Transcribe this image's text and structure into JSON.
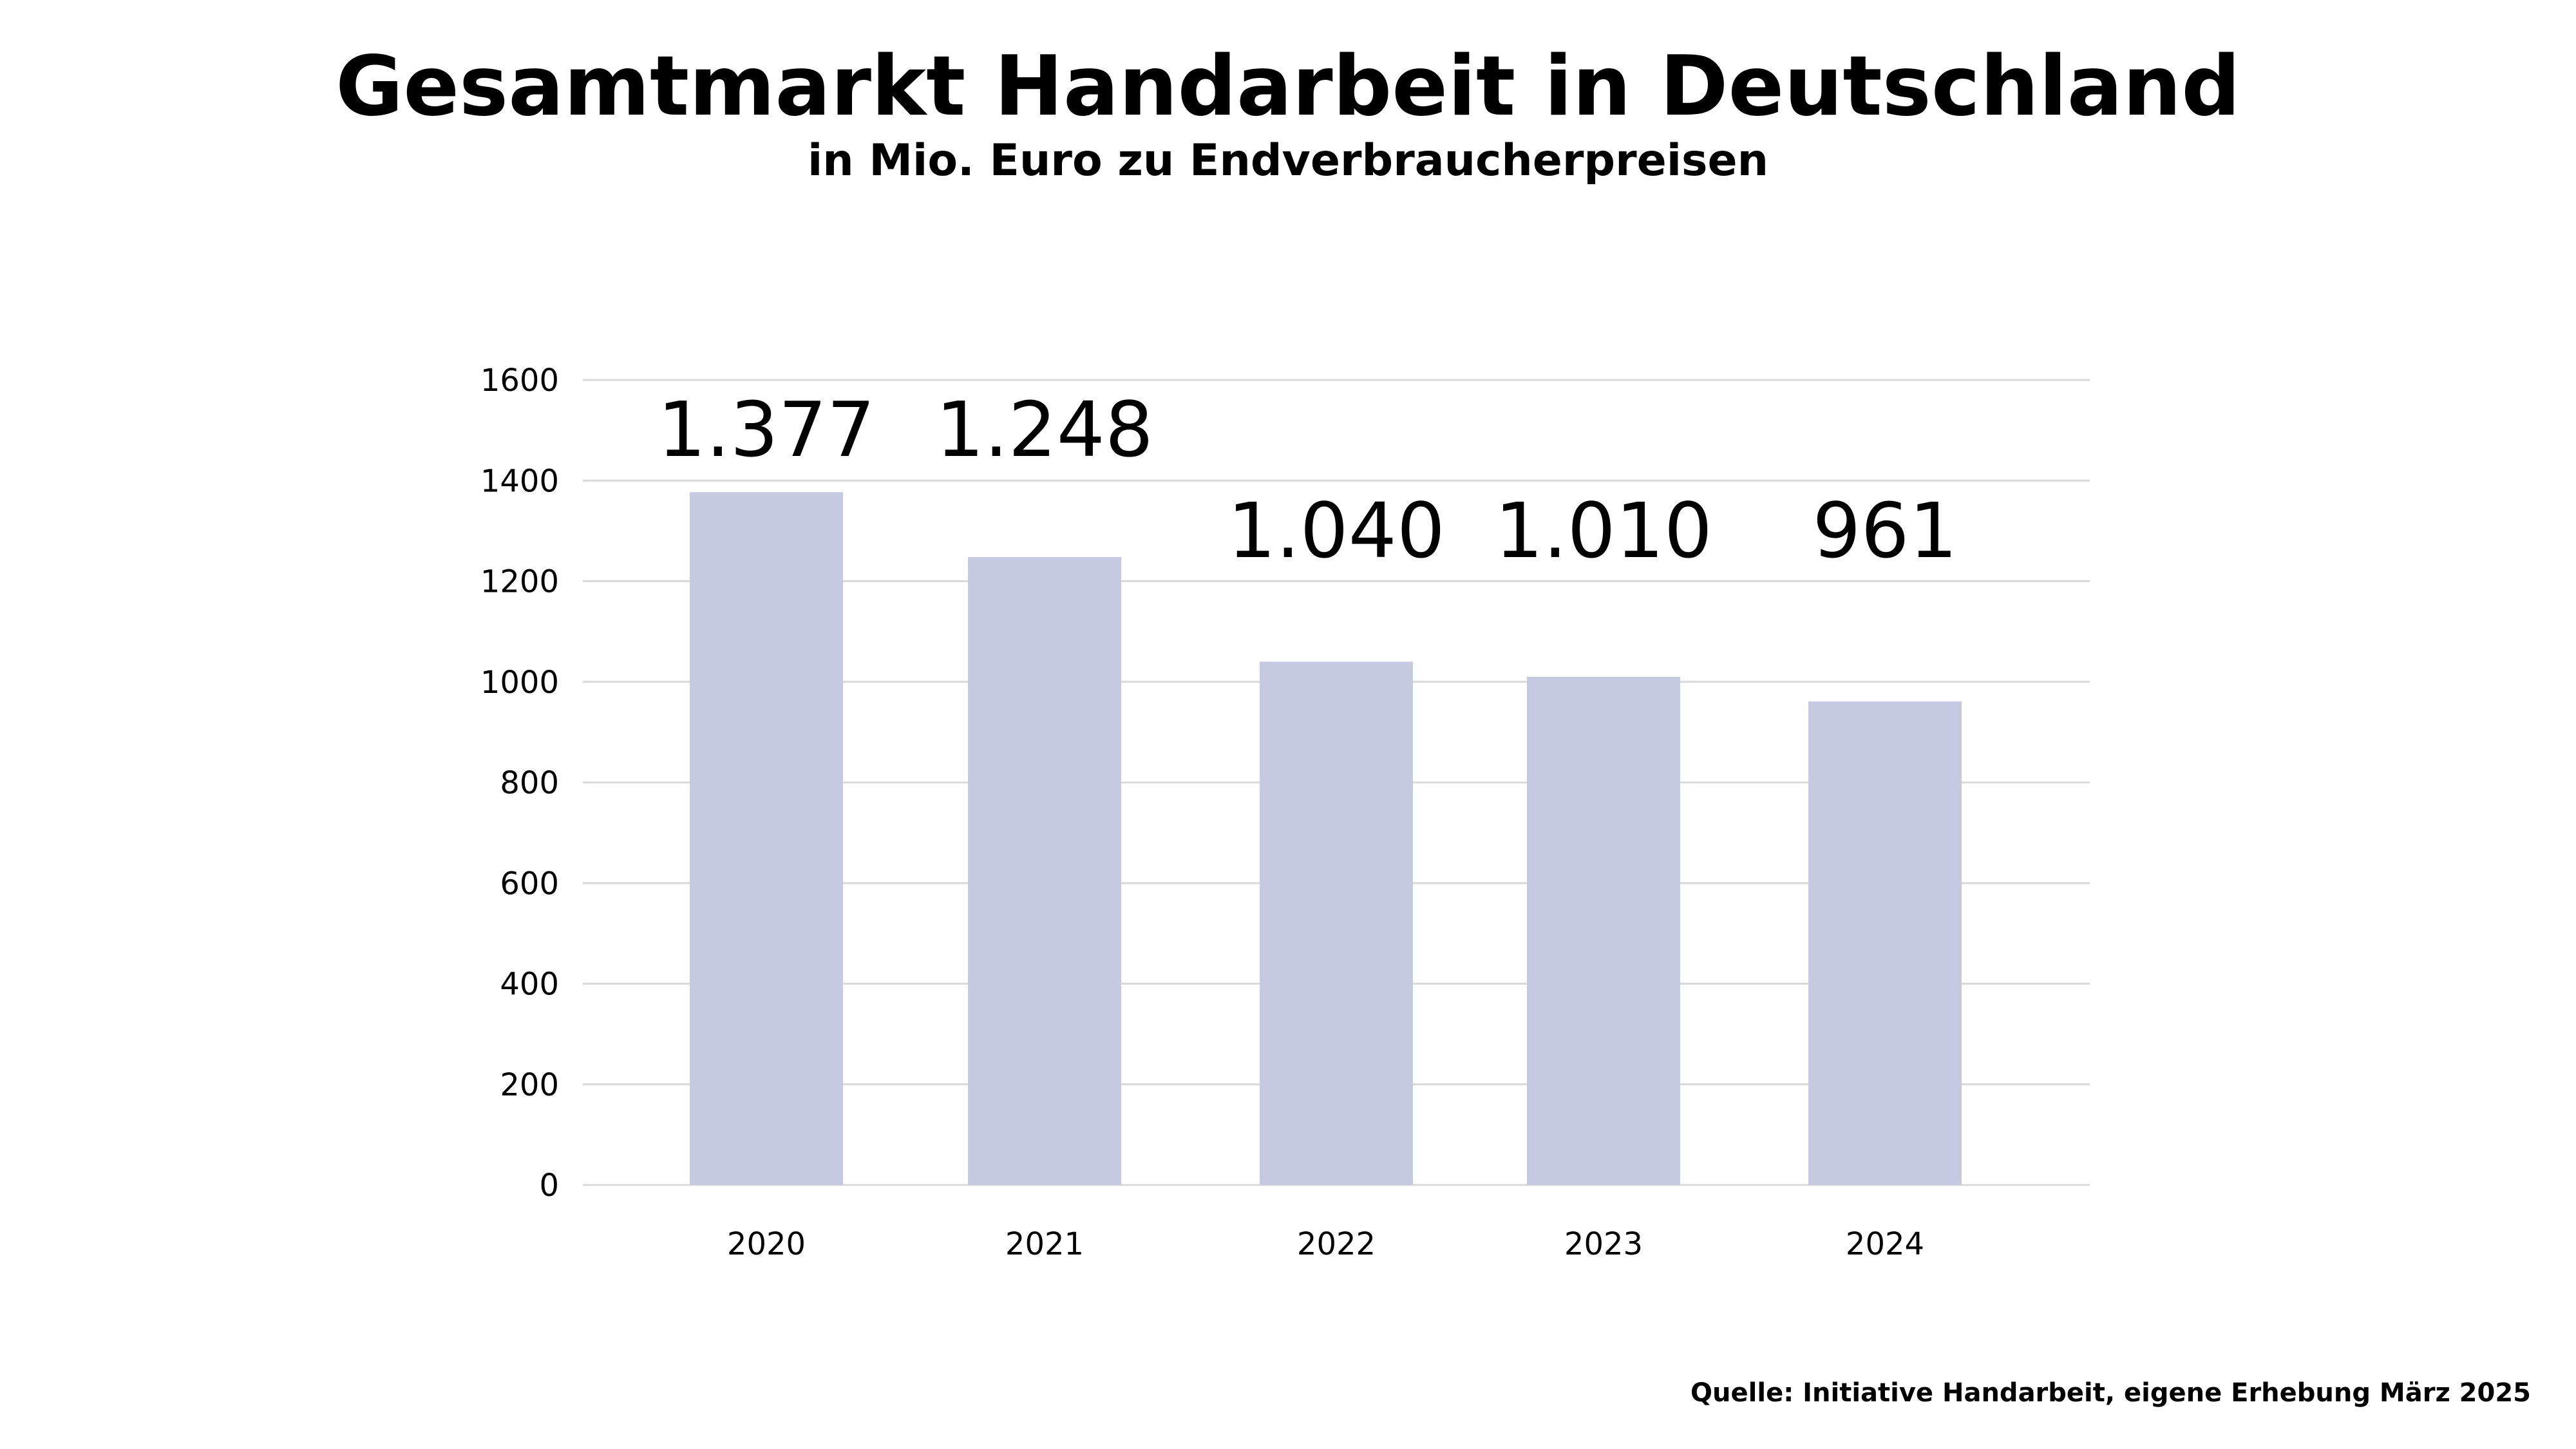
{
  "title": "Gesamtmarkt Handarbeit in Deutschland",
  "subtitle": "in Mio. Euro zu Endverbraucherpreisen",
  "source": "Quelle: Initiative Handarbeit, eigene Erhebung März 2025",
  "colors": {
    "bar": "#c5c9e2",
    "grid": "#d9d9d9",
    "text": "#000000"
  },
  "chart_data": {
    "type": "bar",
    "categories": [
      "2020",
      "2021",
      "2022",
      "2023",
      "2024"
    ],
    "values": [
      1377,
      1248,
      1040,
      1010,
      961
    ],
    "value_labels": [
      "1.377",
      "1.248",
      "1.040",
      "1.010",
      "961"
    ],
    "y_ticks": [
      "0",
      "200",
      "400",
      "600",
      "800",
      "1000",
      "1200",
      "1400",
      "1600"
    ],
    "ylim": [
      0,
      1600
    ],
    "grid": true,
    "legend": "none"
  }
}
